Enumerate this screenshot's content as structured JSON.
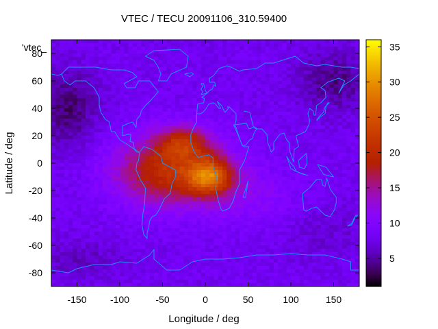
{
  "chart_data": {
    "type": "heatmap",
    "title": "VTEC / TECU 20091106_310.59400",
    "xlabel": "Longitude / deg",
    "ylabel": "Latitude / deg",
    "xlim": [
      -180,
      180
    ],
    "ylim": [
      -90,
      90
    ],
    "x_ticks": [
      -150,
      -100,
      -50,
      0,
      50,
      100,
      150
    ],
    "y_ticks": [
      -80,
      -60,
      -40,
      -20,
      0,
      20,
      40,
      60,
      80
    ],
    "colorbar": {
      "range": [
        1,
        36
      ],
      "ticks": [
        5,
        10,
        15,
        20,
        25,
        30,
        35
      ],
      "colormap": "gnuplot-rgb-7-5-15"
    },
    "legend": {
      "label": "'vtec_",
      "placement": "top-left"
    },
    "grid": false,
    "field_features": {
      "background_tecu": 8,
      "peak": {
        "lon": 5,
        "lat": -10,
        "tecu": 35
      },
      "anomaly_region": {
        "lon": [
          -120,
          50
        ],
        "lat": [
          -45,
          30
        ],
        "tecu": [
          17,
          30
        ]
      },
      "night_minima": [
        {
          "lon": -160,
          "lat": 40,
          "tecu": 3
        },
        {
          "lon": 150,
          "lat": 60,
          "tecu": 3
        }
      ]
    }
  },
  "colors": {
    "coastline": "#1e90ff",
    "axes": "#000000",
    "background": "#ffffff"
  }
}
